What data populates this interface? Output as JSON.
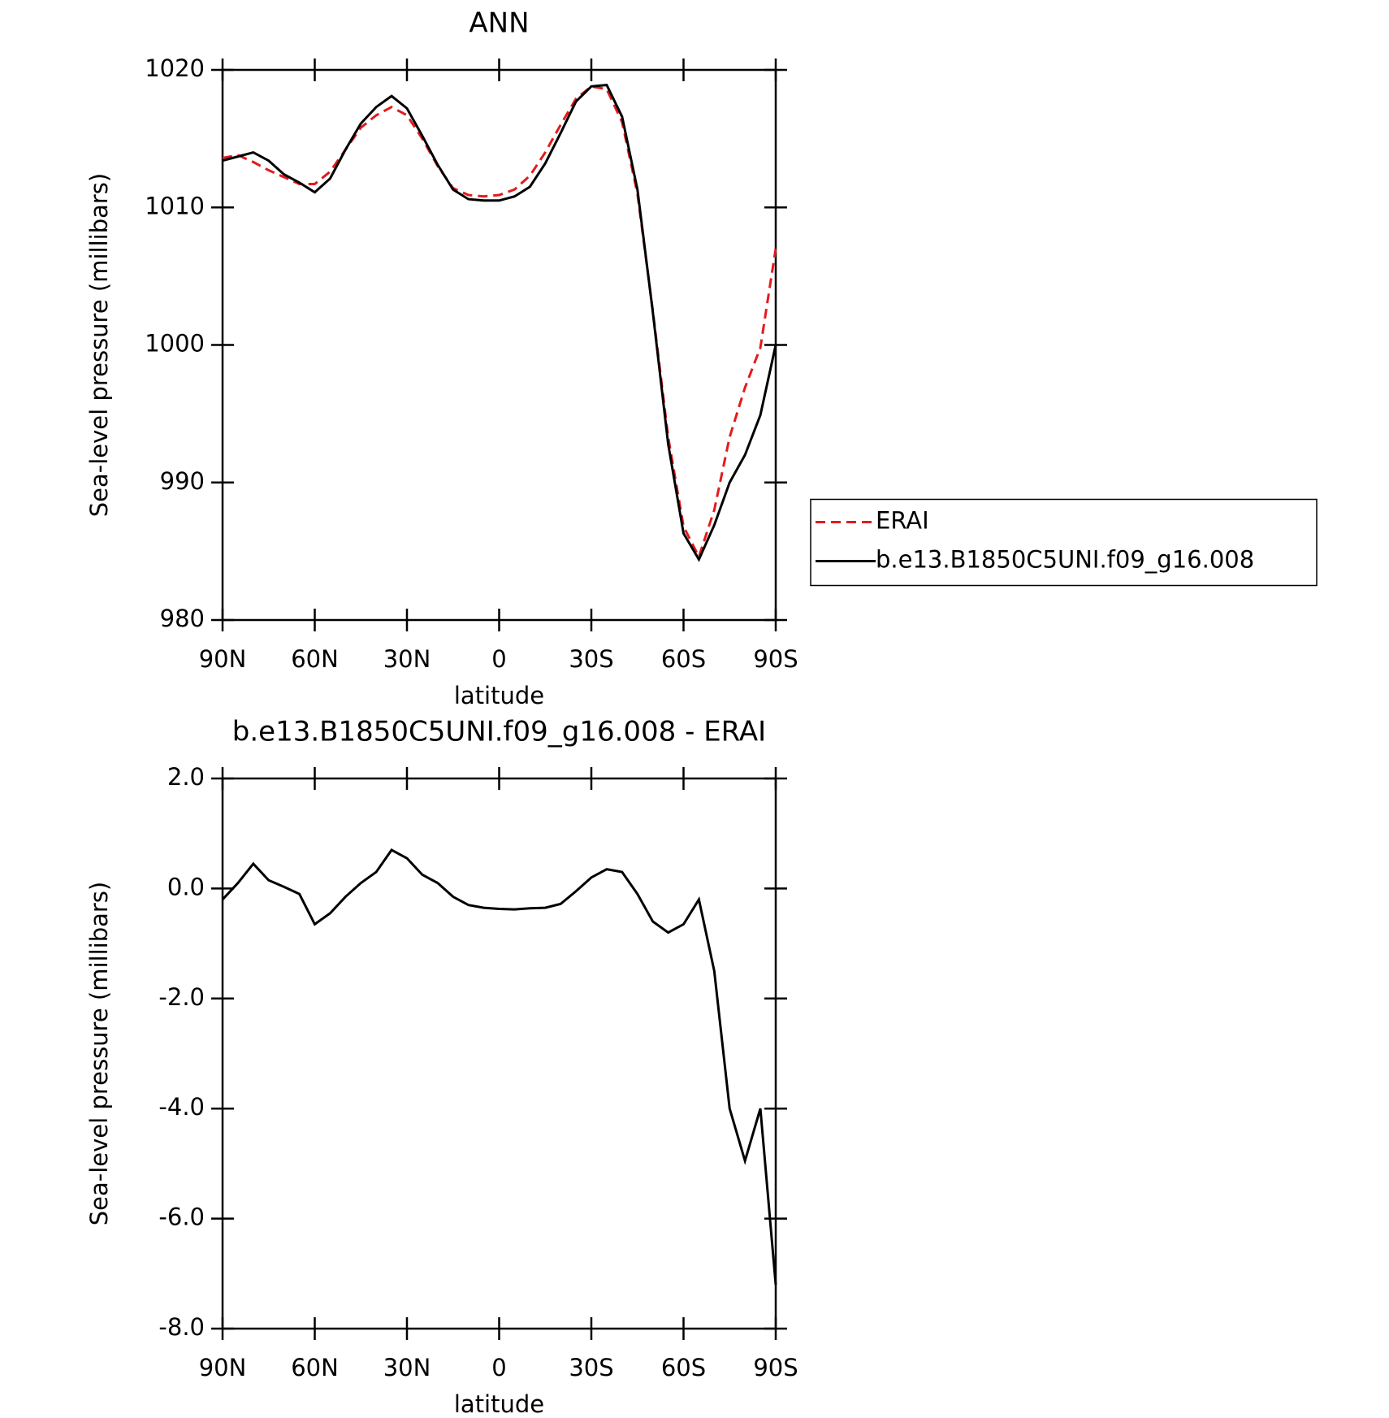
{
  "chart_data": [
    {
      "type": "line",
      "title": "ANN",
      "x_label": "latitude",
      "y_label": "Sea-level pressure (millibars)",
      "x": [
        90,
        85,
        80,
        75,
        70,
        65,
        60,
        55,
        50,
        45,
        40,
        35,
        30,
        25,
        20,
        15,
        10,
        5,
        0,
        -5,
        -10,
        -15,
        -20,
        -25,
        -30,
        -35,
        -40,
        -45,
        -50,
        -55,
        -60,
        -65,
        -70,
        -75,
        -80,
        -85,
        -90
      ],
      "series": [
        {
          "name": "ERAI",
          "color": "#e41a1c",
          "line_style": "dashed",
          "values": [
            1013.6,
            1013.8,
            1013.3,
            1012.7,
            1012.2,
            1011.7,
            1011.7,
            1012.6,
            1014.2,
            1015.8,
            1016.7,
            1017.3,
            1016.7,
            1015,
            1013,
            1011.4,
            1010.9,
            1010.8,
            1010.9,
            1011.3,
            1012.3,
            1014,
            1016,
            1017.9,
            1018.8,
            1018.6,
            1016.2,
            1011,
            1002.5,
            993.3,
            986.8,
            984.6,
            988,
            993.3,
            996.9,
            999.8,
            1007
          ]
        },
        {
          "name": "b.e13.B1850C5UNI.f09_g16.008",
          "color": "#000000",
          "line_style": "solid",
          "values": [
            1013.4,
            1013.7,
            1014,
            1013.4,
            1012.4,
            1011.8,
            1011.1,
            1012.1,
            1014.2,
            1016.1,
            1017.3,
            1018.1,
            1017.2,
            1015.2,
            1013.1,
            1011.3,
            1010.6,
            1010.5,
            1010.5,
            1010.8,
            1011.5,
            1013.2,
            1015.4,
            1017.7,
            1018.8,
            1018.9,
            1016.6,
            1011.3,
            1002.4,
            992.8,
            986.3,
            984.4,
            986.9,
            990,
            992,
            994.9,
            1000
          ]
        }
      ],
      "xlim": [
        90,
        -90
      ],
      "xticks": [
        {
          "value": 90,
          "label": "90N"
        },
        {
          "value": 60,
          "label": "60N"
        },
        {
          "value": 30,
          "label": "30N"
        },
        0,
        {
          "value": -30,
          "label": "30S"
        },
        {
          "value": -60,
          "label": "60S"
        },
        {
          "value": -90,
          "label": "90S"
        }
      ],
      "ylim": [
        980,
        1020
      ],
      "yticks": [
        980,
        990,
        1000,
        1010,
        1020
      ],
      "legend": "right"
    },
    {
      "type": "line",
      "title": "b.e13.B1850C5UNI.f09_g16.008 - ERAI",
      "x_label": "latitude",
      "y_label": "Sea-level pressure (millibars)",
      "x": [
        90,
        85,
        80,
        75,
        70,
        65,
        60,
        55,
        50,
        45,
        40,
        35,
        30,
        25,
        20,
        15,
        10,
        5,
        0,
        -5,
        -10,
        -15,
        -20,
        -25,
        -30,
        -35,
        -40,
        -45,
        -50,
        -55,
        -60,
        -65,
        -70,
        -75,
        -80,
        -85,
        -90
      ],
      "series": [
        {
          "color": "#000000",
          "line_style": "solid",
          "values": [
            -0.2,
            0.1,
            0.45,
            0.15,
            0.03,
            -0.1,
            -0.65,
            -0.45,
            -0.15,
            0.1,
            0.3,
            0.7,
            0.55,
            0.25,
            0.1,
            -0.15,
            -0.3,
            -0.35,
            -0.37,
            -0.38,
            -0.36,
            -0.35,
            -0.28,
            -0.05,
            0.2,
            0.35,
            0.3,
            -0.1,
            -0.6,
            -0.8,
            -0.65,
            -0.2,
            -1.5,
            -4,
            -4.95,
            -4,
            -7.2
          ]
        }
      ],
      "xlim": [
        90,
        -90
      ],
      "xticks": [
        {
          "value": 90,
          "label": "90N"
        },
        {
          "value": 60,
          "label": "60N"
        },
        {
          "value": 30,
          "label": "30N"
        },
        0,
        {
          "value": -30,
          "label": "30S"
        },
        {
          "value": -60,
          "label": "60S"
        },
        {
          "value": -90,
          "label": "90S"
        }
      ],
      "ylim": [
        -8,
        2
      ],
      "yticks": [
        {
          "value": -8,
          "label": "-8.0"
        },
        {
          "value": -6,
          "label": "-6.0"
        },
        {
          "value": -4,
          "label": "-4.0"
        },
        {
          "value": -2,
          "label": "-2.0"
        },
        {
          "value": 0,
          "label": "0.0"
        },
        {
          "value": 2,
          "label": "2.0"
        }
      ]
    }
  ]
}
